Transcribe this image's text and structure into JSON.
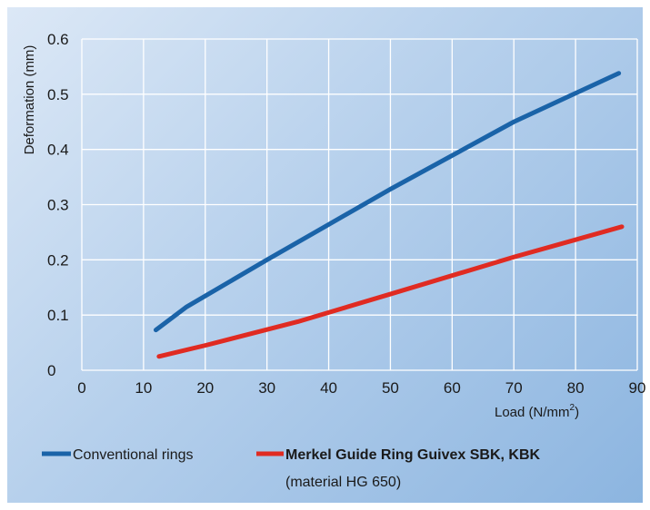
{
  "chart_data": {
    "type": "line",
    "xlabel": "Load (N/mm",
    "xlabel_sup": "2",
    "xlabel_close": ")",
    "ylabel": "Deformation (mm)",
    "xlim": [
      0,
      90
    ],
    "ylim": [
      0,
      0.6
    ],
    "x_ticks": [
      "0",
      "10",
      "20",
      "30",
      "40",
      "50",
      "60",
      "70",
      "80",
      "90"
    ],
    "y_ticks": [
      "0",
      "0.1",
      "0.2",
      "0.3",
      "0.4",
      "0.5",
      "0.6"
    ],
    "grid": true,
    "legend_position": "bottom",
    "series": [
      {
        "name": "Conventional rings",
        "color": "#1a63a8",
        "points": [
          [
            12,
            0.073
          ],
          [
            17,
            0.115
          ],
          [
            30,
            0.2
          ],
          [
            50,
            0.328
          ],
          [
            70,
            0.45
          ],
          [
            87,
            0.538
          ]
        ]
      },
      {
        "name": "Merkel Guide Ring Guivex SBK, KBK",
        "subtitle": "(material HG 650)",
        "color": "#e02b22",
        "points": [
          [
            12.5,
            0.025
          ],
          [
            20,
            0.045
          ],
          [
            35,
            0.088
          ],
          [
            50,
            0.138
          ],
          [
            70,
            0.205
          ],
          [
            87.5,
            0.26
          ]
        ]
      }
    ]
  }
}
